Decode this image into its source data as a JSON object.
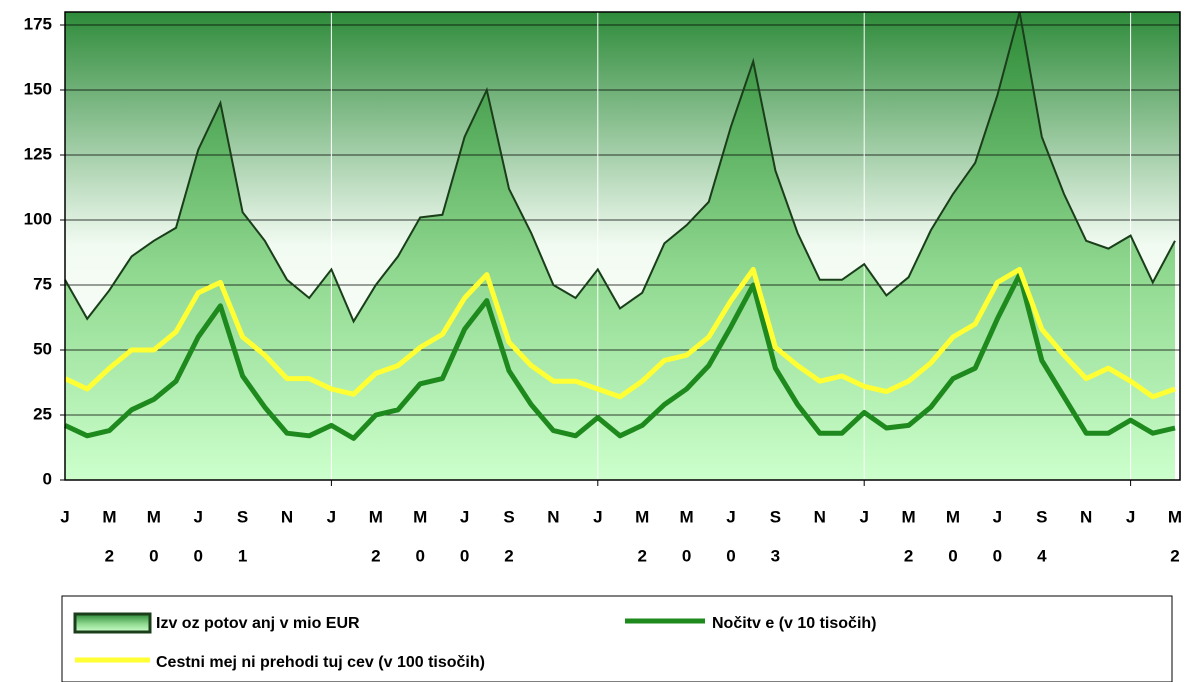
{
  "chart_data": {
    "type": "area-line",
    "categories": [
      "J",
      null,
      "M",
      null,
      "M",
      null,
      "J",
      null,
      "S",
      null,
      "N",
      null,
      "J",
      null,
      "M",
      null,
      "M",
      null,
      "J",
      null,
      "S",
      null,
      "N",
      null,
      "J",
      null,
      "M",
      null,
      "M",
      null,
      "J",
      null,
      "S",
      null,
      "N",
      null,
      "J",
      null,
      "M",
      null,
      "M",
      null,
      "J",
      null,
      "S",
      null,
      "N",
      null,
      "J",
      null,
      "M"
    ],
    "category_sublabels": [
      null,
      null,
      "2",
      null,
      "0",
      null,
      "0",
      null,
      "1",
      null,
      null,
      null,
      null,
      null,
      "2",
      null,
      "0",
      null,
      "0",
      null,
      "2",
      null,
      null,
      null,
      null,
      null,
      "2",
      null,
      "0",
      null,
      "0",
      null,
      "3",
      null,
      null,
      null,
      null,
      null,
      "2",
      null,
      "0",
      null,
      "0",
      null,
      "4",
      null,
      null,
      null,
      null,
      null,
      "2"
    ],
    "series": [
      {
        "name": "Izv oz potov anj v mio EUR",
        "kind": "area",
        "color": "#1a3d1a",
        "values": [
          77,
          62,
          73,
          86,
          92,
          97,
          127,
          145,
          103,
          92,
          77,
          70,
          81,
          61,
          75,
          86,
          101,
          102,
          132,
          150,
          112,
          95,
          75,
          70,
          81,
          66,
          72,
          91,
          98,
          107,
          136,
          161,
          119,
          95,
          77,
          77,
          83,
          71,
          78,
          96,
          110,
          122,
          148,
          180,
          132,
          110,
          92,
          89,
          94,
          76,
          92
        ]
      },
      {
        "name": "Nočitv e (v 10 tisočih)",
        "kind": "line",
        "color": "#1e8a1e",
        "values": [
          21,
          17,
          19,
          27,
          31,
          38,
          55,
          67,
          40,
          28,
          18,
          17,
          21,
          16,
          25,
          27,
          37,
          39,
          58,
          69,
          42,
          29,
          19,
          17,
          24,
          17,
          21,
          29,
          35,
          44,
          59,
          75,
          43,
          29,
          18,
          18,
          26,
          20,
          21,
          28,
          39,
          43,
          62,
          79,
          46,
          32,
          18,
          18,
          23,
          18,
          20
        ]
      },
      {
        "name": "Cestni mej ni prehodi tuj cev (v 100 tisočih)",
        "kind": "line",
        "color": "#ffff33",
        "values": [
          39,
          35,
          43,
          50,
          50,
          57,
          72,
          76,
          55,
          48,
          39,
          39,
          35,
          33,
          41,
          44,
          51,
          56,
          70,
          79,
          53,
          44,
          38,
          38,
          35,
          32,
          38,
          46,
          48,
          55,
          69,
          81,
          51,
          44,
          38,
          40,
          36,
          34,
          38,
          45,
          55,
          60,
          76,
          81,
          58,
          48,
          39,
          43,
          38,
          32,
          35
        ]
      }
    ],
    "ylim": [
      0,
      180
    ],
    "yticks": [
      0,
      25,
      50,
      75,
      100,
      125,
      150,
      175
    ],
    "grid": true
  }
}
